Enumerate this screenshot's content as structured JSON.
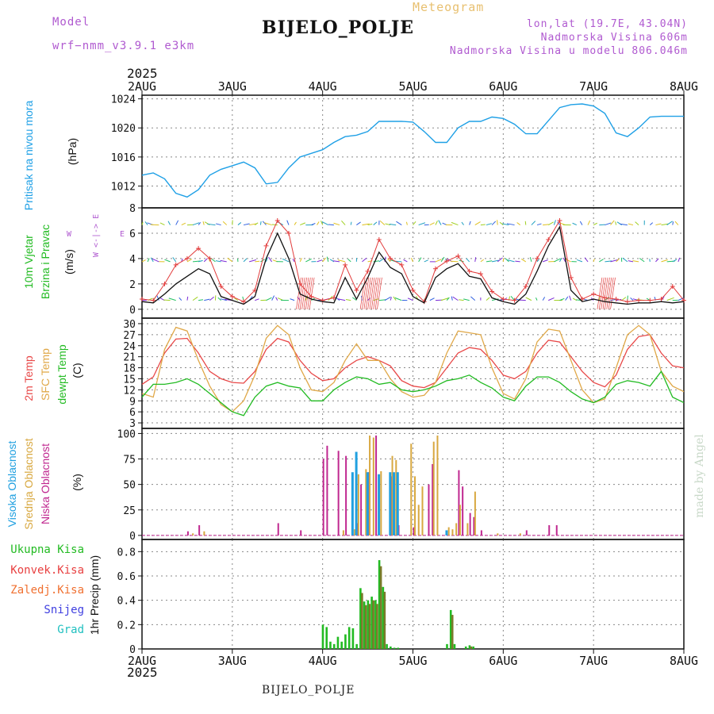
{
  "header": {
    "model_label": "Model",
    "model_name": "wrf−nmm_v3.9.1  e3km",
    "meteogram": "Meteogram",
    "station": "BIJELO_POLJE",
    "lonlat": "lon,lat (19.7E, 43.04N)",
    "altitude": "Nadmorska Visina 606m",
    "model_altitude": "Nadmorska Visina u modelu 806.046m",
    "year_top": "2025",
    "year_bottom": "2025",
    "bottom_station": "BIJELO_POLJE",
    "credit": "made by Angel"
  },
  "colors": {
    "pressure": "#1fa0e6",
    "wind_mean": "#111111",
    "wind_gust": "#e23c3c",
    "t2m": "#e84848",
    "tsfc": "#e0a848",
    "dewpt": "#22bb22",
    "high_cloud": "#20a0e0",
    "mid_cloud": "#d8a840",
    "low_cloud": "#c02890",
    "total_precip": "#22bb22",
    "conv_precip": "#e84040",
    "frozen_precip": "#f07030",
    "snow": "#4040e0",
    "graupel": "#20c0c0",
    "purple": "#b05ad0"
  },
  "chart_data": [
    {
      "type": "line",
      "id": "pressure",
      "title": "Pritisak na nivou mora",
      "ylabel": "(hPa)",
      "ylim": [
        1009,
        1024.5
      ],
      "yticks": [
        1012,
        1016,
        1020,
        1024
      ],
      "x_days": [
        "2AUG",
        "3AUG",
        "4AUG",
        "5AUG",
        "6AUG",
        "7AUG",
        "8AUG"
      ],
      "x_hours": [
        0,
        3,
        6,
        9,
        12,
        15,
        18,
        21,
        24,
        27,
        30,
        33,
        36,
        39,
        42,
        45,
        48,
        51,
        54,
        57,
        60,
        63,
        66,
        69,
        72,
        75,
        78,
        81,
        84,
        87,
        90,
        93,
        96,
        99,
        102,
        105,
        108,
        111,
        114,
        117,
        120,
        123,
        126,
        129,
        132,
        135,
        138,
        141,
        144
      ],
      "values": [
        1013.5,
        1013.8,
        1013.0,
        1011.0,
        1010.5,
        1011.5,
        1013.5,
        1014.3,
        1014.8,
        1015.3,
        1014.5,
        1012.3,
        1012.5,
        1014.5,
        1016.0,
        1016.5,
        1017.0,
        1018.0,
        1018.8,
        1019.0,
        1019.5,
        1020.9,
        1020.9,
        1020.9,
        1020.8,
        1019.5,
        1018.0,
        1018.0,
        1020.0,
        1020.9,
        1020.9,
        1021.5,
        1021.3,
        1020.5,
        1019.2,
        1019.2,
        1021.0,
        1022.8,
        1023.2,
        1023.3,
        1023.0,
        1022.0,
        1019.3,
        1018.8,
        1020.0,
        1021.5,
        1021.6,
        1021.6,
        1021.6
      ]
    },
    {
      "type": "line",
      "id": "wind",
      "title": "10m Vjetar Brzina i Pravac",
      "ylabel": "(m/s)",
      "ylim": [
        -0.7,
        8
      ],
      "yticks": [
        0,
        2,
        4,
        6,
        8
      ],
      "compass": "W < - | - > E   N ^ S",
      "series": [
        {
          "name": "mean_speed",
          "x_hours": [
            0,
            3,
            6,
            9,
            12,
            15,
            18,
            21,
            24,
            27,
            30,
            33,
            36,
            39,
            42,
            45,
            48,
            51,
            54,
            57,
            60,
            63,
            66,
            69,
            72,
            75,
            78,
            81,
            84,
            87,
            90,
            93,
            96,
            99,
            102,
            105,
            108,
            111,
            114,
            117,
            120,
            123,
            126,
            129,
            132,
            135,
            138,
            141,
            144
          ],
          "values": [
            0.6,
            0.5,
            1.2,
            2.0,
            2.6,
            3.2,
            2.8,
            1.0,
            0.7,
            0.4,
            1.0,
            4.0,
            6.0,
            4.0,
            1.2,
            0.8,
            0.6,
            0.5,
            2.5,
            0.8,
            2.5,
            4.5,
            3.3,
            2.8,
            1.0,
            0.5,
            2.5,
            3.2,
            3.6,
            2.6,
            2.4,
            0.9,
            0.6,
            0.4,
            1.2,
            3.0,
            5.0,
            6.5,
            1.5,
            0.6,
            0.8,
            0.6,
            0.5,
            0.4,
            0.5,
            0.5,
            0.6,
            0.5,
            0.6
          ]
        },
        {
          "name": "gust",
          "x_hours": [
            0,
            3,
            6,
            9,
            12,
            15,
            18,
            21,
            24,
            27,
            30,
            33,
            36,
            39,
            42,
            45,
            48,
            51,
            54,
            57,
            60,
            63,
            66,
            69,
            72,
            75,
            78,
            81,
            84,
            87,
            90,
            93,
            96,
            99,
            102,
            105,
            108,
            111,
            114,
            117,
            120,
            123,
            126,
            129,
            132,
            135,
            138,
            141,
            144
          ],
          "values": [
            0.8,
            0.7,
            2.0,
            3.5,
            4.0,
            4.8,
            4.0,
            1.8,
            1.0,
            0.6,
            1.5,
            5.0,
            7.0,
            6.0,
            2.0,
            1.0,
            0.7,
            0.9,
            3.5,
            1.5,
            3.0,
            5.5,
            4.0,
            3.5,
            1.5,
            0.6,
            3.2,
            3.8,
            4.2,
            3.0,
            2.8,
            1.4,
            0.8,
            0.7,
            1.8,
            4.0,
            5.5,
            7.0,
            2.5,
            0.8,
            1.2,
            0.9,
            0.8,
            0.6,
            0.7,
            0.7,
            0.8,
            1.8,
            0.7
          ]
        }
      ]
    },
    {
      "type": "line",
      "id": "temperature",
      "title": "2m Temp / SFC Temp / dewpt Temp",
      "ylabel": "(C)",
      "ylim": [
        1.5,
        31.5
      ],
      "yticks": [
        3,
        6,
        9,
        12,
        15,
        18,
        21,
        24,
        27,
        30
      ],
      "series": [
        {
          "name": "2m Temp",
          "x_hours": [
            0,
            3,
            6,
            9,
            12,
            15,
            18,
            21,
            24,
            27,
            30,
            33,
            36,
            39,
            42,
            45,
            48,
            51,
            54,
            57,
            60,
            63,
            66,
            69,
            72,
            75,
            78,
            81,
            84,
            87,
            90,
            93,
            96,
            99,
            102,
            105,
            108,
            111,
            114,
            117,
            120,
            123,
            126,
            129,
            132,
            135,
            138,
            141,
            144
          ],
          "values": [
            13.5,
            15.5,
            22.0,
            25.8,
            26.0,
            22.0,
            17.0,
            15.0,
            14.0,
            13.8,
            17.0,
            23.0,
            26.0,
            25.0,
            20.0,
            16.5,
            14.5,
            15.0,
            18.0,
            20.0,
            21.0,
            20.0,
            18.5,
            14.5,
            13.0,
            12.6,
            14.0,
            18.0,
            22.0,
            23.5,
            23.0,
            20.0,
            16.0,
            15.0,
            17.0,
            22.0,
            25.5,
            25.0,
            21.0,
            17.0,
            14.0,
            12.8,
            16.0,
            23.0,
            26.5,
            27.0,
            22.0,
            18.5,
            18.0
          ]
        },
        {
          "name": "SFC Temp",
          "x_hours": [
            0,
            3,
            6,
            9,
            12,
            15,
            18,
            21,
            24,
            27,
            30,
            33,
            36,
            39,
            42,
            45,
            48,
            51,
            54,
            57,
            60,
            63,
            66,
            69,
            72,
            75,
            78,
            81,
            84,
            87,
            90,
            93,
            96,
            99,
            102,
            105,
            108,
            111,
            114,
            117,
            120,
            123,
            126,
            129,
            132,
            135,
            138,
            141,
            144
          ],
          "values": [
            11.0,
            10.0,
            23.0,
            29.0,
            28.0,
            20.0,
            13.0,
            8.0,
            6.0,
            9.0,
            16.0,
            26.0,
            29.5,
            27.0,
            18.0,
            12.0,
            11.5,
            14.0,
            20.0,
            24.5,
            20.0,
            20.0,
            15.0,
            11.5,
            10.0,
            10.5,
            14.0,
            22.0,
            28.0,
            27.5,
            27.0,
            18.0,
            11.0,
            9.5,
            15.0,
            25.0,
            28.5,
            28.0,
            20.0,
            12.0,
            8.5,
            9.5,
            18.0,
            27.0,
            29.5,
            27.0,
            17.0,
            13.0,
            11.5
          ]
        },
        {
          "name": "dewpt Temp",
          "x_hours": [
            0,
            3,
            6,
            9,
            12,
            15,
            18,
            21,
            24,
            27,
            30,
            33,
            36,
            39,
            42,
            45,
            48,
            51,
            54,
            57,
            60,
            63,
            66,
            69,
            72,
            75,
            78,
            81,
            84,
            87,
            90,
            93,
            96,
            99,
            102,
            105,
            108,
            111,
            114,
            117,
            120,
            123,
            126,
            129,
            132,
            135,
            138,
            141,
            144
          ],
          "values": [
            10.0,
            13.5,
            13.5,
            14.0,
            15.0,
            13.5,
            11.0,
            8.5,
            6.0,
            5.0,
            10.0,
            13.0,
            14.0,
            13.0,
            12.5,
            9.0,
            9.0,
            12.0,
            14.0,
            15.5,
            15.0,
            13.5,
            14.0,
            12.0,
            11.5,
            12.0,
            13.0,
            14.5,
            15.0,
            16.0,
            14.0,
            12.5,
            10.0,
            9.0,
            13.0,
            15.5,
            15.5,
            14.0,
            11.5,
            9.5,
            8.5,
            10.0,
            13.5,
            14.5,
            14.0,
            13.0,
            17.0,
            10.0,
            8.5
          ]
        }
      ]
    },
    {
      "type": "bar",
      "id": "cloud",
      "title": "Visoka / Srednja / Niska Oblacnost",
      "ylabel": "(%)",
      "ylim": [
        -4,
        105
      ],
      "yticks": [
        0,
        25,
        50,
        75,
        100
      ],
      "series": [
        {
          "name": "Niska Oblacnost",
          "x_hours": [
            12,
            15,
            36,
            42,
            48,
            49,
            52,
            54,
            57,
            58,
            60,
            62,
            66,
            68,
            72,
            76,
            77,
            84,
            85,
            87,
            88,
            90,
            102,
            108,
            110
          ],
          "values": [
            4,
            10,
            12,
            5,
            75,
            88,
            83,
            78,
            12,
            50,
            62,
            98,
            58,
            10,
            8,
            50,
            70,
            64,
            48,
            22,
            18,
            5,
            5,
            10,
            10
          ]
        },
        {
          "name": "Srednja Oblacnost",
          "x_hours": [
            13,
            16,
            53,
            56,
            57,
            59,
            60,
            61,
            63,
            66,
            67,
            71,
            72,
            73,
            74,
            77,
            78,
            81,
            82,
            83,
            84,
            86,
            88,
            94,
            100
          ],
          "values": [
            2,
            4,
            5,
            6,
            60,
            65,
            98,
            96,
            63,
            78,
            74,
            90,
            58,
            30,
            48,
            92,
            98,
            8,
            6,
            12,
            30,
            12,
            43,
            2,
            2
          ]
        },
        {
          "name": "Visoka Oblacnost",
          "x_hours": [
            55,
            56,
            59,
            62,
            65,
            66,
            67,
            80
          ],
          "values": [
            62,
            82,
            62,
            60,
            62,
            62,
            62,
            5
          ]
        }
      ]
    },
    {
      "type": "bar",
      "id": "precip",
      "title": "1hr Precip",
      "ylabel": "1hr Precip (mm)",
      "ylim": [
        0,
        0.9
      ],
      "yticks": [
        0,
        0.2,
        0.4,
        0.6,
        0.8
      ],
      "legend": [
        "Ukupna Kisa",
        "Konvek.Kisa",
        "Zaledj.Kisa",
        "Snijeg",
        "Grad"
      ],
      "series": [
        {
          "name": "Ukupna Kisa",
          "x_hours": [
            48,
            49,
            50,
            51,
            52,
            53,
            54,
            55,
            56,
            57,
            58,
            59,
            60,
            61,
            62,
            63,
            64,
            65,
            66,
            67,
            68,
            81,
            82,
            83,
            86,
            87,
            88
          ],
          "values": [
            0.2,
            0.18,
            0.06,
            0.04,
            0.1,
            0.06,
            0.12,
            0.18,
            0.17,
            0.04,
            0.5,
            0.39,
            0.4,
            0.43,
            0.4,
            0.73,
            0.51,
            0.04,
            0.02,
            0.01,
            0.01,
            0.04,
            0.32,
            0.04,
            0.02,
            0.03,
            0.02
          ]
        },
        {
          "name": "Konvek.Kisa",
          "x_hours": [
            58,
            59,
            60,
            61,
            62,
            63,
            64,
            82,
            87
          ],
          "values": [
            0.46,
            0.36,
            0.37,
            0.4,
            0.37,
            0.68,
            0.47,
            0.28,
            0.02
          ]
        }
      ]
    }
  ]
}
